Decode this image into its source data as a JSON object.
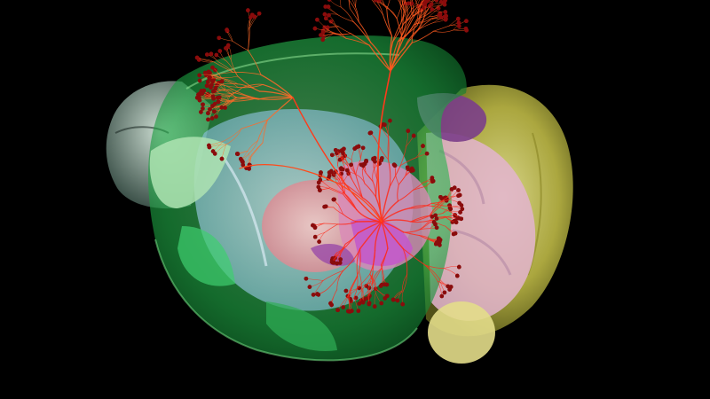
{
  "scene": {
    "subject": "3d-brain-render-with-neuron-projections",
    "background_color": "#000000"
  },
  "colors": {
    "cerebrum": "#2fbf4a",
    "cerebrum_light": "#8fe08a",
    "olfactory": "#8fa79a",
    "inner_blue": "#b7d7f0",
    "inner_pink": "#e9a6b0",
    "thalamus_magenta": "#c35ac9",
    "cerebellum": "#c9c44a",
    "brainstem_pink": "#e7b7d0",
    "midbrain_purple": "#7b3e8a",
    "neuron": "#ff3a1a",
    "soma": "#8a0c0c"
  }
}
